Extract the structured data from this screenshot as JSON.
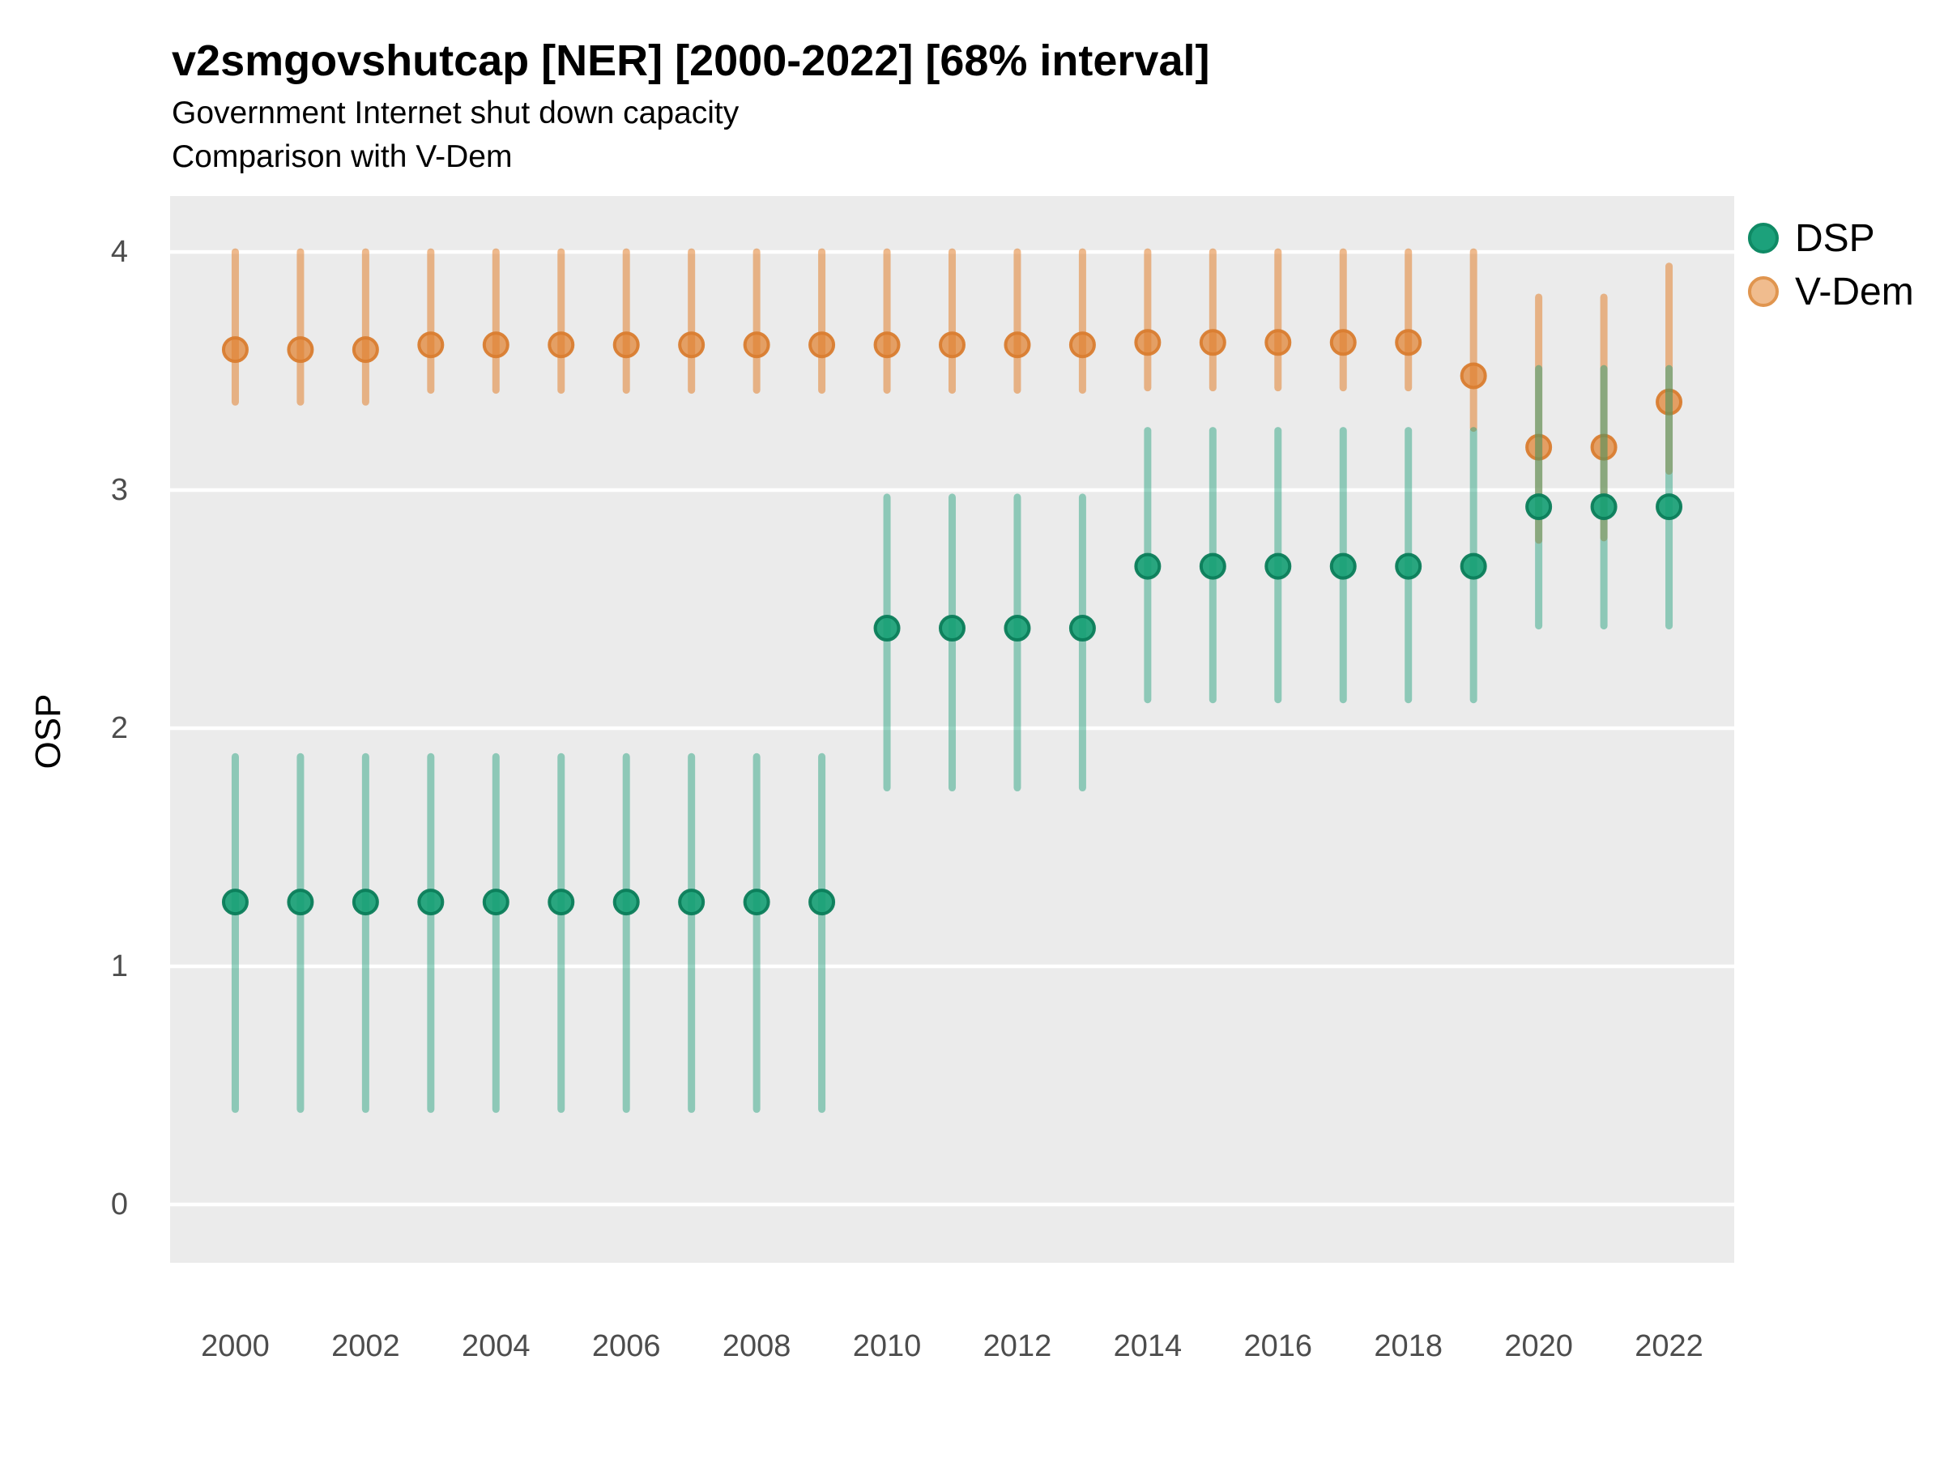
{
  "title": "v2smgovshutcap [NER] [2000-2022] [68% interval]",
  "subtitle_line1": "Government Internet shut down capacity",
  "subtitle_line2": "Comparison with V-Dem",
  "y_axis_title": "OSP",
  "colors": {
    "panel_bg": "#EBEBEB",
    "gridline": "#FFFFFF",
    "tick_label": "#4D4D4D",
    "text": "#000000",
    "dsp_base": "#1B9E77",
    "dsp_line": "rgba(27,158,119,0.45)",
    "dsp_point_fill": "rgba(20,158,115,0.9)",
    "dsp_point_stroke": "rgba(11,125,90,0.95)",
    "dsp_legend_fill": "#1CA17B",
    "dsp_legend_stroke": "#0F8A65",
    "vdem_base": "#E1812F",
    "vdem_line": "rgba(225,129,47,0.55)",
    "vdem_point_fill": "rgba(225,129,47,0.72)",
    "vdem_point_stroke": "rgba(217,125,48,0.95)",
    "vdem_legend_fill": "#F0BC8E",
    "vdem_legend_stroke": "#E0954F"
  },
  "chart_data": {
    "type": "pointrange",
    "title": "v2smgovshutcap [NER] [2000-2022] [68% interval]",
    "subtitle": [
      "Government Internet shut down capacity",
      "Comparison with V-Dem"
    ],
    "interval_label": "68% interval",
    "ylabel": "OSP",
    "xlabel": "",
    "legend_position": "right",
    "legend_order": [
      "DSP",
      "V-Dem"
    ],
    "grid": "horizontal-major-only",
    "xlim": [
      1999,
      2023
    ],
    "ylim": [
      -0.245,
      4.235
    ],
    "x_ticks": [
      2000,
      2002,
      2004,
      2006,
      2008,
      2010,
      2012,
      2014,
      2016,
      2018,
      2020,
      2022
    ],
    "y_ticks": [
      0,
      1,
      2,
      3,
      4
    ],
    "series": [
      {
        "name": "V-Dem",
        "points": [
          {
            "year": 2000,
            "value": 3.59,
            "lo": 3.37,
            "hi": 4.0
          },
          {
            "year": 2001,
            "value": 3.59,
            "lo": 3.37,
            "hi": 4.0
          },
          {
            "year": 2002,
            "value": 3.59,
            "lo": 3.37,
            "hi": 4.0
          },
          {
            "year": 2003,
            "value": 3.61,
            "lo": 3.42,
            "hi": 4.0
          },
          {
            "year": 2004,
            "value": 3.61,
            "lo": 3.42,
            "hi": 4.0
          },
          {
            "year": 2005,
            "value": 3.61,
            "lo": 3.42,
            "hi": 4.0
          },
          {
            "year": 2006,
            "value": 3.61,
            "lo": 3.42,
            "hi": 4.0
          },
          {
            "year": 2007,
            "value": 3.61,
            "lo": 3.42,
            "hi": 4.0
          },
          {
            "year": 2008,
            "value": 3.61,
            "lo": 3.42,
            "hi": 4.0
          },
          {
            "year": 2009,
            "value": 3.61,
            "lo": 3.42,
            "hi": 4.0
          },
          {
            "year": 2010,
            "value": 3.61,
            "lo": 3.42,
            "hi": 4.0
          },
          {
            "year": 2011,
            "value": 3.61,
            "lo": 3.42,
            "hi": 4.0
          },
          {
            "year": 2012,
            "value": 3.61,
            "lo": 3.42,
            "hi": 4.0
          },
          {
            "year": 2013,
            "value": 3.61,
            "lo": 3.42,
            "hi": 4.0
          },
          {
            "year": 2014,
            "value": 3.62,
            "lo": 3.43,
            "hi": 4.0
          },
          {
            "year": 2015,
            "value": 3.62,
            "lo": 3.43,
            "hi": 4.0
          },
          {
            "year": 2016,
            "value": 3.62,
            "lo": 3.43,
            "hi": 4.0
          },
          {
            "year": 2017,
            "value": 3.62,
            "lo": 3.43,
            "hi": 4.0
          },
          {
            "year": 2018,
            "value": 3.62,
            "lo": 3.43,
            "hi": 4.0
          },
          {
            "year": 2019,
            "value": 3.48,
            "lo": 3.26,
            "hi": 4.0
          },
          {
            "year": 2020,
            "value": 3.18,
            "lo": 2.79,
            "hi": 3.81
          },
          {
            "year": 2021,
            "value": 3.18,
            "lo": 2.8,
            "hi": 3.81
          },
          {
            "year": 2022,
            "value": 3.37,
            "lo": 3.08,
            "hi": 3.94
          }
        ]
      },
      {
        "name": "DSP",
        "points": [
          {
            "year": 2000,
            "value": 1.27,
            "lo": 0.4,
            "hi": 1.88
          },
          {
            "year": 2001,
            "value": 1.27,
            "lo": 0.4,
            "hi": 1.88
          },
          {
            "year": 2002,
            "value": 1.27,
            "lo": 0.4,
            "hi": 1.88
          },
          {
            "year": 2003,
            "value": 1.27,
            "lo": 0.4,
            "hi": 1.88
          },
          {
            "year": 2004,
            "value": 1.27,
            "lo": 0.4,
            "hi": 1.88
          },
          {
            "year": 2005,
            "value": 1.27,
            "lo": 0.4,
            "hi": 1.88
          },
          {
            "year": 2006,
            "value": 1.27,
            "lo": 0.4,
            "hi": 1.88
          },
          {
            "year": 2007,
            "value": 1.27,
            "lo": 0.4,
            "hi": 1.88
          },
          {
            "year": 2008,
            "value": 1.27,
            "lo": 0.4,
            "hi": 1.88
          },
          {
            "year": 2009,
            "value": 1.27,
            "lo": 0.4,
            "hi": 1.88
          },
          {
            "year": 2010,
            "value": 2.42,
            "lo": 1.75,
            "hi": 2.97
          },
          {
            "year": 2011,
            "value": 2.42,
            "lo": 1.75,
            "hi": 2.97
          },
          {
            "year": 2012,
            "value": 2.42,
            "lo": 1.75,
            "hi": 2.97
          },
          {
            "year": 2013,
            "value": 2.42,
            "lo": 1.75,
            "hi": 2.97
          },
          {
            "year": 2014,
            "value": 2.68,
            "lo": 2.12,
            "hi": 3.25
          },
          {
            "year": 2015,
            "value": 2.68,
            "lo": 2.12,
            "hi": 3.25
          },
          {
            "year": 2016,
            "value": 2.68,
            "lo": 2.12,
            "hi": 3.25
          },
          {
            "year": 2017,
            "value": 2.68,
            "lo": 2.12,
            "hi": 3.25
          },
          {
            "year": 2018,
            "value": 2.68,
            "lo": 2.12,
            "hi": 3.25
          },
          {
            "year": 2019,
            "value": 2.68,
            "lo": 2.12,
            "hi": 3.25
          },
          {
            "year": 2020,
            "value": 2.93,
            "lo": 2.43,
            "hi": 3.51
          },
          {
            "year": 2021,
            "value": 2.93,
            "lo": 2.43,
            "hi": 3.51
          },
          {
            "year": 2022,
            "value": 2.93,
            "lo": 2.43,
            "hi": 3.51
          }
        ]
      }
    ]
  }
}
